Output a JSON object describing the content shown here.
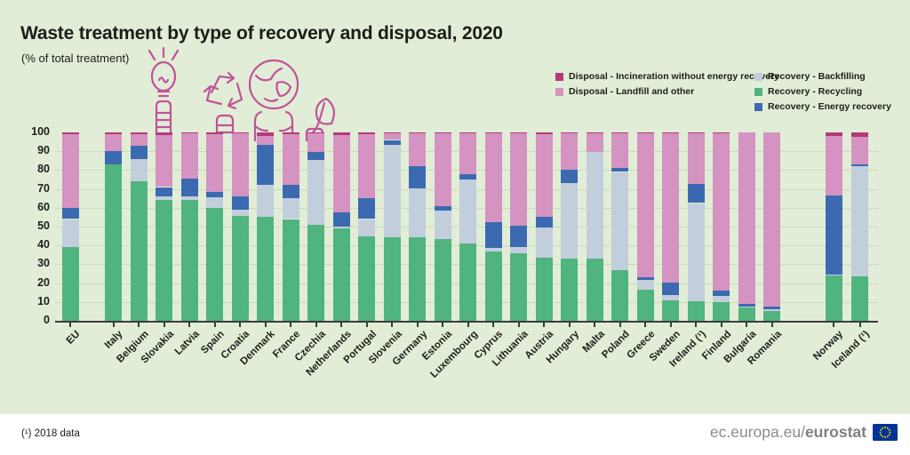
{
  "title": "Waste treatment by type of recovery and disposal, 2020",
  "subtitle": "(% of total treatment)",
  "legend": [
    {
      "label": "Disposal - Incineration without energy recovery",
      "color": "#b23a7a"
    },
    {
      "label": "Disposal - Landfill and other",
      "color": "#d493c0"
    },
    {
      "label": "Recovery - Backfilling",
      "color": "#c2cedb"
    },
    {
      "label": "Recovery - Recycling",
      "color": "#50b47e"
    },
    {
      "label": "Recovery - Energy recovery",
      "color": "#3b6ab1"
    }
  ],
  "footer": {
    "note": "(¹) 2018 data",
    "site_regular": "ec.europa.eu/",
    "site_bold": "eurostat"
  },
  "chart_data": {
    "type": "bar",
    "stacked": true,
    "title": "Waste treatment by type of recovery and disposal, 2020",
    "ylabel": "% of total treatment",
    "ylim": [
      0,
      100
    ],
    "yticks": [
      0,
      10,
      20,
      30,
      40,
      50,
      60,
      70,
      80,
      90,
      100
    ],
    "grid": true,
    "legend_position": "top-right",
    "categories": [
      "EU",
      "Italy",
      "Belgium",
      "Slovakia",
      "Latvia",
      "Spain",
      "Croatia",
      "Denmark",
      "France",
      "Czechia",
      "Netherlands",
      "Portugal",
      "Slovenia",
      "Germany",
      "Estonia",
      "Luxembourg",
      "Cyprus",
      "Lithuania",
      "Austria",
      "Hungary",
      "Malta",
      "Poland",
      "Greece",
      "Sweden",
      "Ireland (¹)",
      "Finland",
      "Bulgaria",
      "Romania",
      "Norway",
      "Iceland (¹)"
    ],
    "series": [
      {
        "name": "Recovery - Recycling",
        "color": "#50b47e",
        "values": [
          39,
          83,
          74,
          64,
          64,
          60,
          55.5,
          55,
          54,
          51,
          49,
          45,
          44.5,
          44.5,
          43.5,
          41,
          37,
          36,
          33.5,
          33,
          33,
          27,
          16.5,
          11,
          10.5,
          10,
          7,
          5,
          24,
          23.5
        ]
      },
      {
        "name": "Recovery - Backfilling",
        "color": "#c2cedb",
        "values": [
          15,
          0,
          12,
          2,
          2,
          5.5,
          3.5,
          17,
          11,
          34.5,
          1,
          9,
          49,
          26,
          15,
          34,
          1.5,
          3,
          16,
          40,
          56.5,
          52,
          5,
          2.5,
          52,
          3,
          0.5,
          1,
          0.5,
          58.5
        ]
      },
      {
        "name": "Recovery - Energy recovery",
        "color": "#3b6ab1",
        "values": [
          6,
          7,
          7,
          5,
          9.5,
          3,
          7,
          21.5,
          7,
          4,
          7.5,
          11,
          2.5,
          11.5,
          2.5,
          3,
          14,
          11.5,
          5.5,
          7,
          0,
          2,
          1.5,
          7,
          10,
          3,
          1.5,
          1.5,
          42,
          1
        ]
      },
      {
        "name": "Disposal - Landfill and other",
        "color": "#d493c0",
        "values": [
          39,
          9,
          6,
          27.5,
          24,
          30.5,
          33.5,
          4.5,
          27,
          10,
          41,
          34,
          3.5,
          17.5,
          38.5,
          21.5,
          47,
          49,
          44,
          19.5,
          10,
          18.5,
          76.5,
          79,
          27,
          83.5,
          91,
          92.5,
          31.5,
          14.5
        ]
      },
      {
        "name": "Disposal - Incineration without energy recovery",
        "color": "#b23a7a",
        "values": [
          1,
          1,
          1,
          1.5,
          0.5,
          1,
          0.5,
          2,
          1,
          0.5,
          1.5,
          1,
          0.5,
          0.5,
          0.5,
          0.5,
          0.5,
          0.5,
          1,
          0.5,
          0.5,
          0.5,
          0.5,
          0.5,
          0.5,
          0.5,
          0,
          0,
          2,
          2.5
        ]
      }
    ]
  }
}
